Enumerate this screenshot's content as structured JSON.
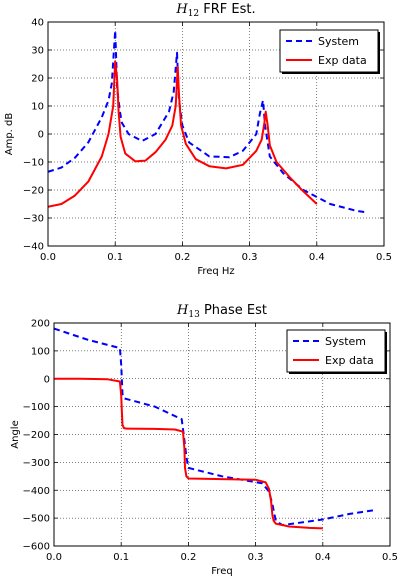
{
  "chart_data": [
    {
      "type": "line",
      "title_main": "H",
      "title_sub": "12",
      "title_rest": " FRF Est.",
      "xlabel": "Freq Hz",
      "ylabel": "Amp. dB",
      "xlim": [
        0.0,
        0.5
      ],
      "ylim": [
        -40,
        40
      ],
      "x_ticks": [
        "0.0",
        "0.1",
        "0.2",
        "0.3",
        "0.4",
        "0.5"
      ],
      "y_ticks": [
        "40",
        "30",
        "20",
        "10",
        "0",
        "−10",
        "−20",
        "−30",
        "−40"
      ],
      "grid": true,
      "legend_position": "top-right",
      "series": [
        {
          "name": "System",
          "color": "#0000ff",
          "dash": "dashed",
          "x": [
            0.0,
            0.02,
            0.04,
            0.06,
            0.08,
            0.09,
            0.095,
            0.1,
            0.103,
            0.107,
            0.11,
            0.12,
            0.14,
            0.16,
            0.18,
            0.187,
            0.192,
            0.195,
            0.2,
            0.21,
            0.24,
            0.27,
            0.29,
            0.31,
            0.315,
            0.32,
            0.323,
            0.33,
            0.35,
            0.38,
            0.42,
            0.46,
            0.475
          ],
          "y": [
            -13.5,
            -12,
            -8.5,
            -3,
            6,
            12,
            18,
            37,
            16,
            8,
            4,
            0,
            -2.5,
            0,
            8,
            15,
            29,
            12,
            3,
            -3,
            -8,
            -8.3,
            -6,
            0,
            7,
            12,
            3,
            -8,
            -14,
            -20,
            -25,
            -27.5,
            -28
          ]
        },
        {
          "name": "Exp data",
          "color": "#ff0000",
          "dash": "solid",
          "x": [
            0.0,
            0.02,
            0.04,
            0.06,
            0.08,
            0.09,
            0.097,
            0.1,
            0.103,
            0.105,
            0.108,
            0.115,
            0.13,
            0.145,
            0.16,
            0.175,
            0.185,
            0.19,
            0.193,
            0.195,
            0.198,
            0.205,
            0.22,
            0.24,
            0.265,
            0.29,
            0.31,
            0.318,
            0.322,
            0.324,
            0.327,
            0.33,
            0.34,
            0.36,
            0.38,
            0.4
          ],
          "y": [
            -26,
            -25,
            -22,
            -17,
            -8,
            0,
            10,
            26,
            19,
            8,
            -1,
            -7,
            -9.8,
            -9.5,
            -6.5,
            -2,
            3,
            10,
            24,
            14,
            3,
            -3.5,
            -9,
            -11.5,
            -12.3,
            -11,
            -6,
            -2,
            4,
            8,
            3,
            -4,
            -10,
            -15.5,
            -20.5,
            -25
          ]
        }
      ]
    },
    {
      "type": "line",
      "title_main": "H",
      "title_sub": "13",
      "title_rest": " Phase Est",
      "xlabel": "Freq",
      "ylabel": "Angle",
      "xlim": [
        0.0,
        0.5
      ],
      "ylim": [
        -600,
        200
      ],
      "x_ticks": [
        "0.0",
        "0.1",
        "0.2",
        "0.3",
        "0.4",
        "0.5"
      ],
      "y_ticks": [
        "200",
        "100",
        "0",
        "−100",
        "−200",
        "−300",
        "−400",
        "−500",
        "−600"
      ],
      "grid": true,
      "legend_position": "top-right",
      "series": [
        {
          "name": "System",
          "color": "#0000ff",
          "dash": "dashed",
          "x": [
            0.0,
            0.05,
            0.098,
            0.1,
            0.102,
            0.104,
            0.15,
            0.19,
            0.193,
            0.197,
            0.2,
            0.25,
            0.31,
            0.32,
            0.325,
            0.33,
            0.34,
            0.4,
            0.44,
            0.48
          ],
          "y": [
            180,
            140,
            110,
            50,
            -55,
            -70,
            -100,
            -145,
            -200,
            -280,
            -320,
            -350,
            -375,
            -405,
            -450,
            -510,
            -525,
            -505,
            -485,
            -470
          ]
        },
        {
          "name": "Exp data",
          "color": "#ff0000",
          "dash": "solid",
          "x": [
            0.0,
            0.04,
            0.08,
            0.098,
            0.1,
            0.101,
            0.102,
            0.104,
            0.108,
            0.15,
            0.18,
            0.192,
            0.194,
            0.195,
            0.197,
            0.2,
            0.25,
            0.3,
            0.315,
            0.32,
            0.323,
            0.325,
            0.327,
            0.33,
            0.35,
            0.38,
            0.4
          ],
          "y": [
            0,
            0,
            -2,
            -10,
            -60,
            -120,
            -165,
            -177,
            -179,
            -180,
            -182,
            -190,
            -250,
            -320,
            -350,
            -358,
            -360,
            -362,
            -372,
            -395,
            -440,
            -490,
            -510,
            -520,
            -530,
            -535,
            -537
          ]
        }
      ]
    }
  ]
}
